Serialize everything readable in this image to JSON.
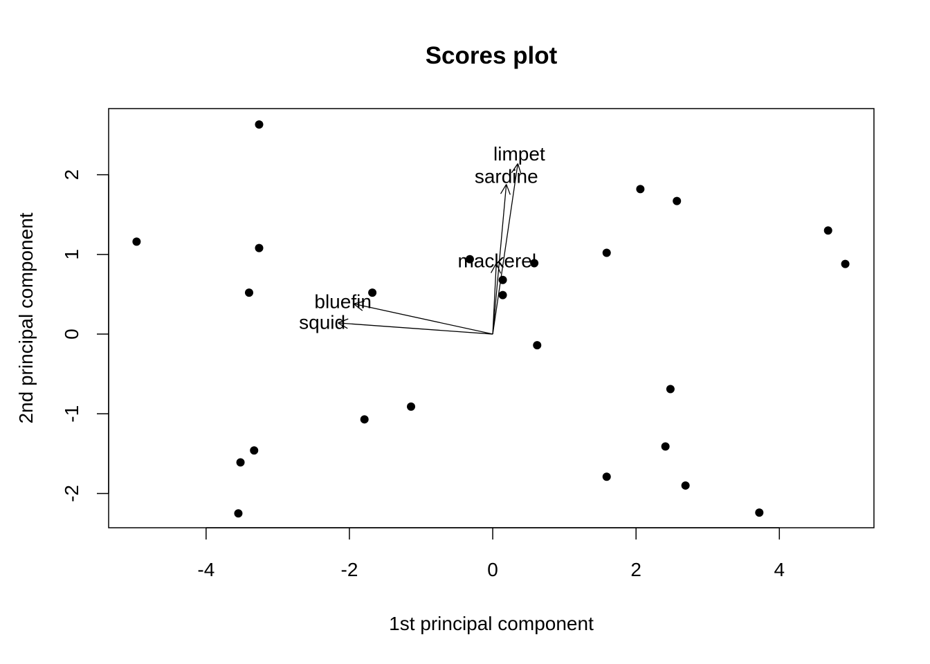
{
  "chart_data": {
    "type": "scatter",
    "title": "Scores plot",
    "xlabel": "1st principal component",
    "ylabel": "2nd principal component",
    "xlim": [
      -5.36,
      5.32
    ],
    "ylim": [
      -2.43,
      2.83
    ],
    "x_ticks": [
      -4,
      -2,
      0,
      2,
      4
    ],
    "x_tick_labels": [
      "-4",
      "-2",
      "0",
      "2",
      "4"
    ],
    "y_ticks": [
      -2,
      -1,
      0,
      1,
      2
    ],
    "y_tick_labels": [
      "-2",
      "-1",
      "0",
      "1",
      "2"
    ],
    "grid": false,
    "legend": "none",
    "point_color": "#000000",
    "points": [
      {
        "x": -3.26,
        "y": 2.63
      },
      {
        "x": -4.97,
        "y": 1.16
      },
      {
        "x": -3.26,
        "y": 1.08
      },
      {
        "x": -3.4,
        "y": 0.52
      },
      {
        "x": -1.68,
        "y": 0.52
      },
      {
        "x": -0.32,
        "y": 0.94
      },
      {
        "x": 0.58,
        "y": 0.89
      },
      {
        "x": 0.14,
        "y": 0.68
      },
      {
        "x": 0.14,
        "y": 0.49
      },
      {
        "x": 0.62,
        "y": -0.14
      },
      {
        "x": 1.59,
        "y": 1.02
      },
      {
        "x": 2.06,
        "y": 1.82
      },
      {
        "x": 2.57,
        "y": 1.67
      },
      {
        "x": 4.68,
        "y": 1.3
      },
      {
        "x": 4.92,
        "y": 0.88
      },
      {
        "x": 2.48,
        "y": -0.69
      },
      {
        "x": 2.41,
        "y": -1.41
      },
      {
        "x": 1.59,
        "y": -1.79
      },
      {
        "x": 2.69,
        "y": -1.9
      },
      {
        "x": 3.72,
        "y": -2.24
      },
      {
        "x": -1.14,
        "y": -0.91
      },
      {
        "x": -1.79,
        "y": -1.07
      },
      {
        "x": -3.33,
        "y": -1.46
      },
      {
        "x": -3.52,
        "y": -1.61
      },
      {
        "x": -3.55,
        "y": -2.25
      }
    ],
    "loadings": [
      {
        "name": "limpet",
        "x": 0.35,
        "y": 2.14,
        "label_x": 0.37,
        "label_y": 2.26
      },
      {
        "name": "sardine",
        "x": 0.19,
        "y": 1.88,
        "label_x": 0.19,
        "label_y": 1.98
      },
      {
        "name": "mackerel",
        "x": 0.05,
        "y": 0.89,
        "label_x": 0.06,
        "label_y": 0.92
      },
      {
        "name": "bluefin",
        "x": -1.94,
        "y": 0.38,
        "label_x": -2.09,
        "label_y": 0.41
      },
      {
        "name": "squid",
        "x": -2.16,
        "y": 0.14,
        "label_x": -2.38,
        "label_y": 0.15
      }
    ]
  }
}
